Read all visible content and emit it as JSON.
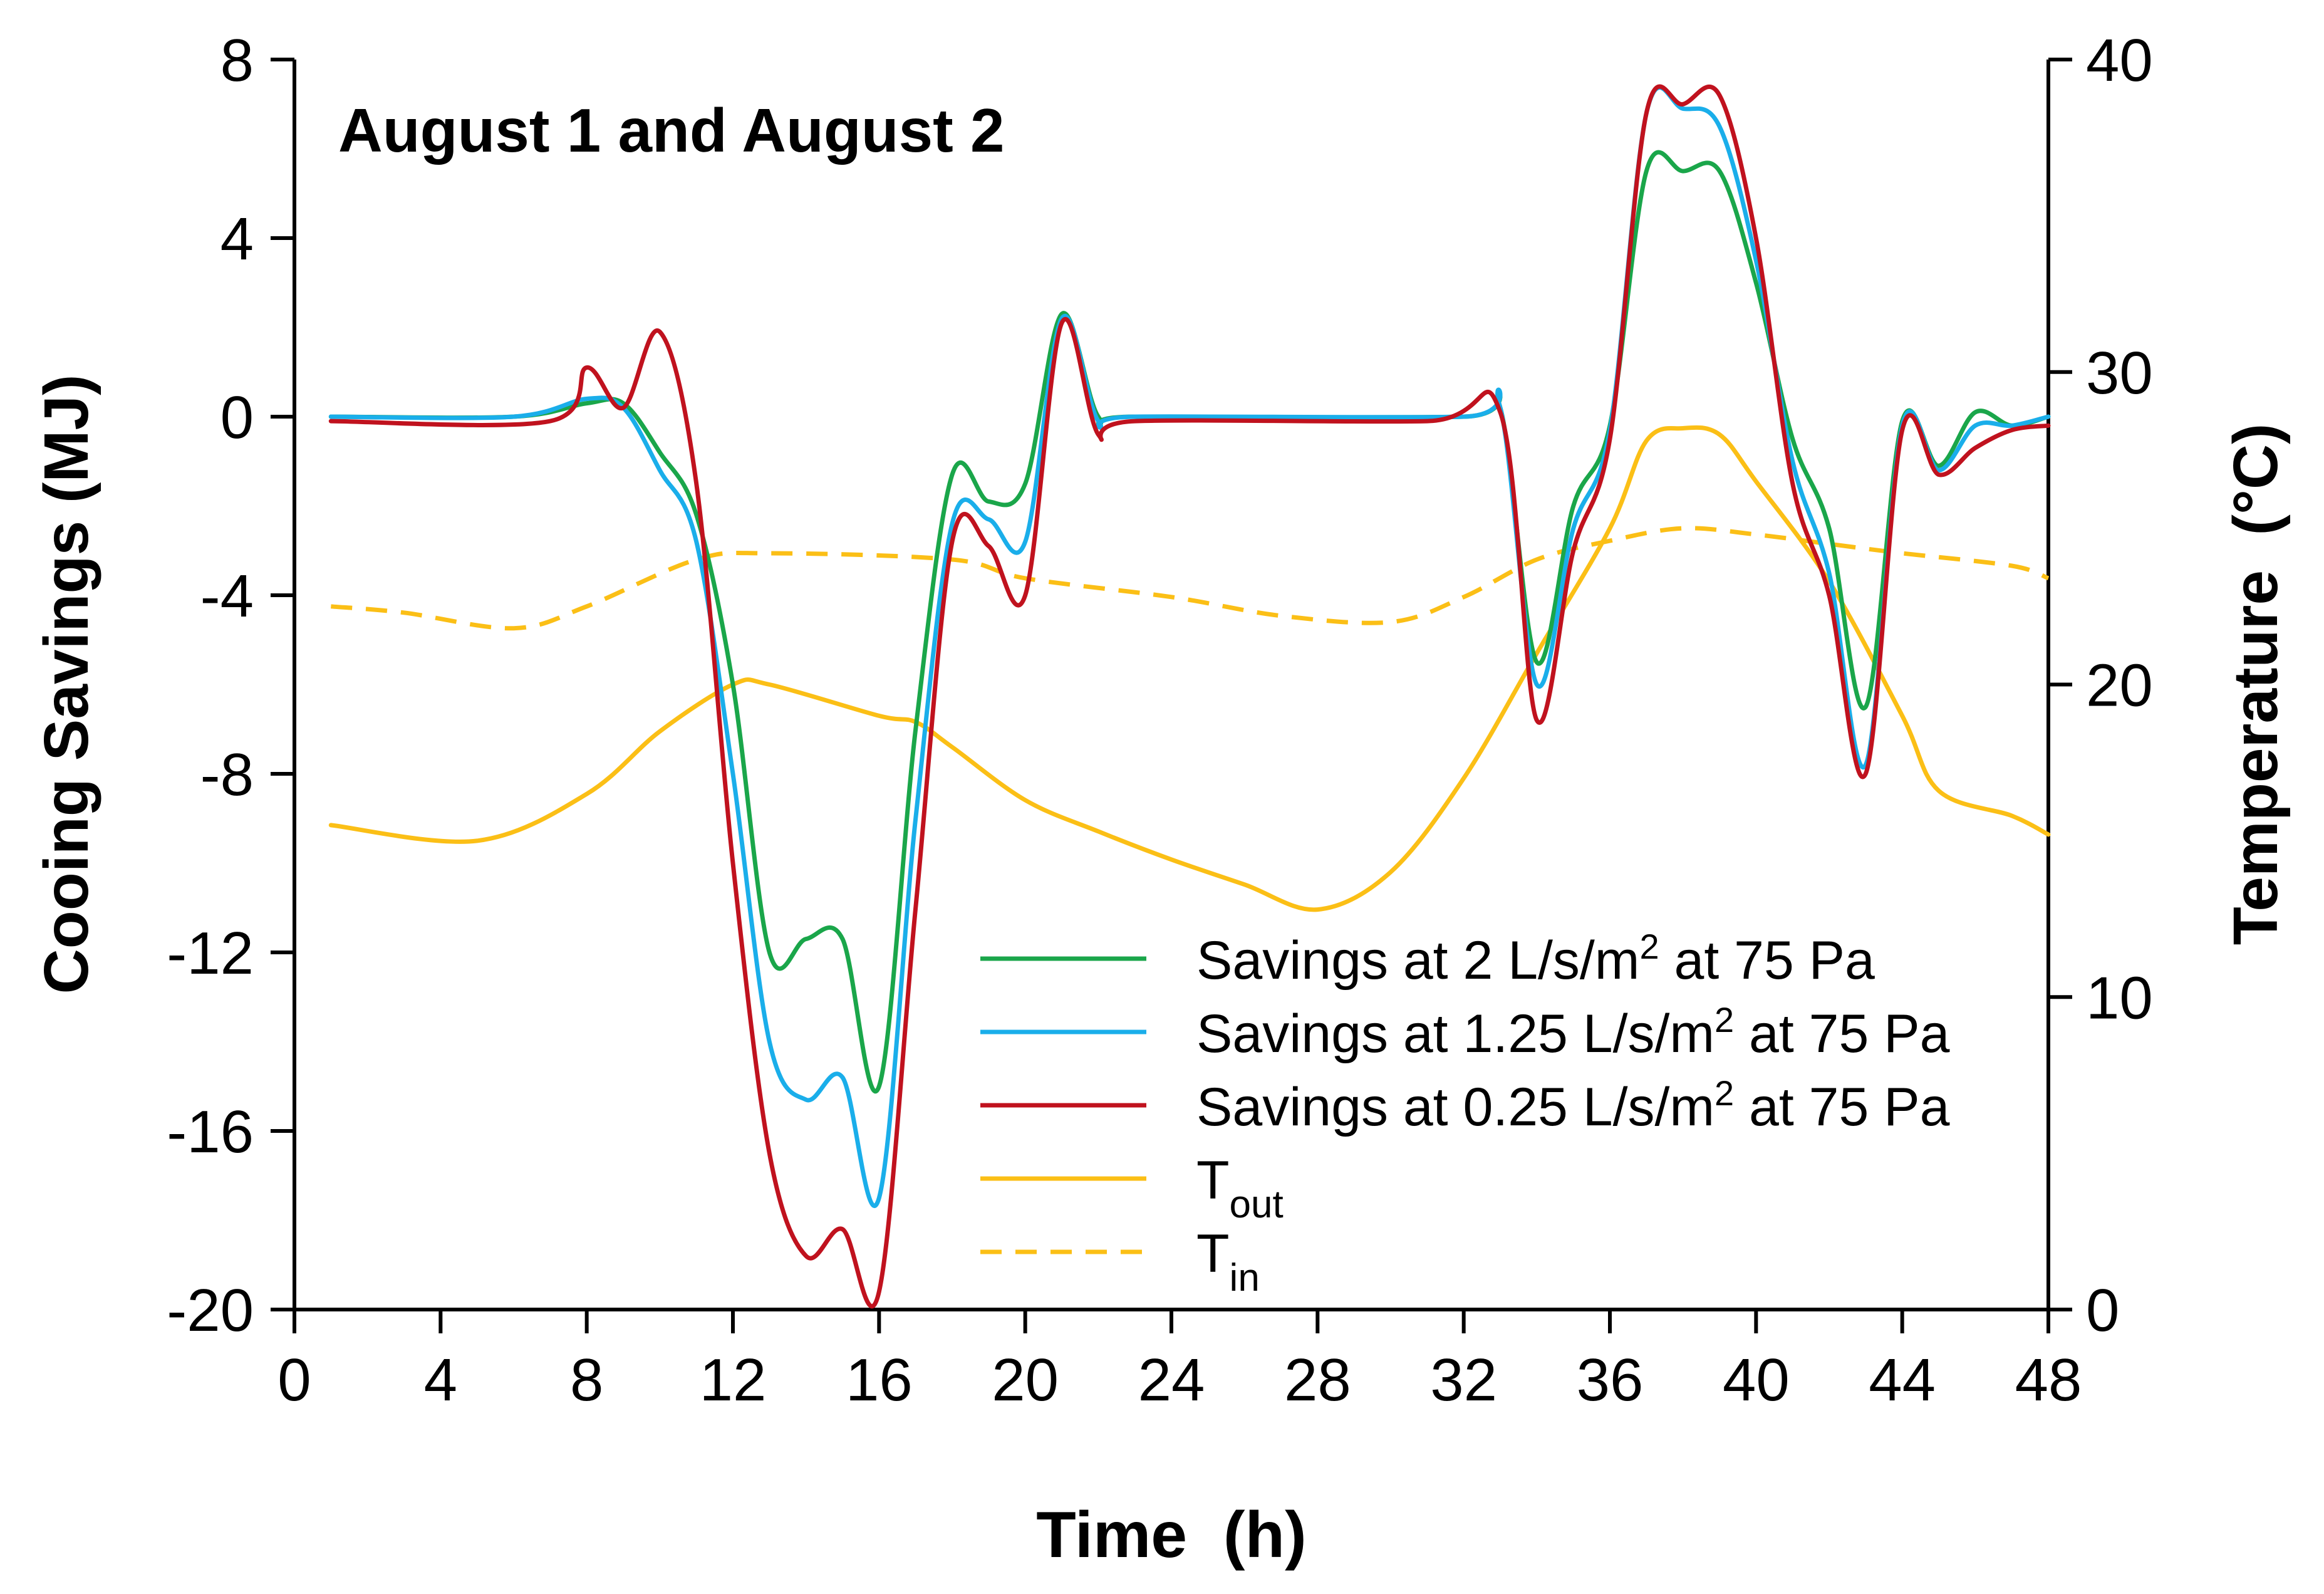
{
  "chart_data": {
    "type": "line",
    "title": "August 1 and August 2",
    "xlabel": "Time  (h)",
    "ylabel_left": "Cooing Savings (MJ)",
    "ylabel_right": "Temperature  (°C)",
    "xlim": [
      0,
      48
    ],
    "ylim_left": [
      -20,
      8
    ],
    "ylim_right": [
      0,
      40
    ],
    "x_ticks": [
      "0",
      "4",
      "8",
      "12",
      "16",
      "20",
      "24",
      "28",
      "32",
      "36",
      "40",
      "44",
      "48"
    ],
    "y_ticks_left": [
      "8",
      "4",
      "0",
      "-4",
      "-8",
      "-12",
      "-16",
      "-20"
    ],
    "y_ticks_right": [
      "40",
      "30",
      "20",
      "10",
      "0"
    ],
    "grid": false,
    "legend_position": "bottom-center",
    "series": [
      {
        "name": "Savings at 2 L/s/m² at 75 Pa",
        "legend_main": "Savings at 2 L/s/m",
        "legend_sup": "2",
        "legend_tail": " at 75 Pa",
        "axis": "left",
        "color": "#1aa64a",
        "dash": false,
        "points": [
          [
            1,
            0
          ],
          [
            6,
            0
          ],
          [
            8,
            0.3
          ],
          [
            9,
            0.3
          ],
          [
            10,
            -0.8
          ],
          [
            11,
            -2.2
          ],
          [
            12,
            -6
          ],
          [
            13,
            -12
          ],
          [
            14,
            -11.7
          ],
          [
            15,
            -11.7
          ],
          [
            16,
            -15
          ],
          [
            17,
            -7
          ],
          [
            18,
            -1.3
          ],
          [
            19,
            -1.9
          ],
          [
            20,
            -1.5
          ],
          [
            21,
            2.3
          ],
          [
            22,
            0
          ],
          [
            23,
            0
          ],
          [
            32,
            0
          ],
          [
            33,
            0.2
          ],
          [
            34,
            -5.5
          ],
          [
            35,
            -2
          ],
          [
            36,
            -0.2
          ],
          [
            37,
            5.5
          ],
          [
            38,
            5.5
          ],
          [
            39,
            5.5
          ],
          [
            40,
            3
          ],
          [
            41,
            -0.5
          ],
          [
            42,
            -2.5
          ],
          [
            43,
            -6.5
          ],
          [
            44,
            -0.1
          ],
          [
            45,
            -1.1
          ],
          [
            46,
            0.1
          ],
          [
            47,
            -0.2
          ],
          [
            48,
            0
          ]
        ]
      },
      {
        "name": "Savings at 1.25 L/s/m² at 75 Pa",
        "legend_main": "Savings at 1.25 L/s/m",
        "legend_sup": "2",
        "legend_tail": " at 75 Pa",
        "axis": "left",
        "color": "#1aaeea",
        "dash": false,
        "points": [
          [
            1,
            0
          ],
          [
            6,
            0
          ],
          [
            8,
            0.4
          ],
          [
            9,
            0.2
          ],
          [
            10,
            -1.2
          ],
          [
            11,
            -2.8
          ],
          [
            12,
            -8
          ],
          [
            13,
            -14
          ],
          [
            14,
            -15.3
          ],
          [
            15,
            -14.8
          ],
          [
            16,
            -17.5
          ],
          [
            17,
            -9
          ],
          [
            18,
            -2.4
          ],
          [
            19,
            -2.3
          ],
          [
            20,
            -2.8
          ],
          [
            21,
            2.2
          ],
          [
            22,
            -0.1
          ],
          [
            23,
            0
          ],
          [
            32,
            0
          ],
          [
            33,
            0.2
          ],
          [
            34,
            -6
          ],
          [
            35,
            -2.5
          ],
          [
            36,
            -0.3
          ],
          [
            37,
            6.8
          ],
          [
            38,
            6.9
          ],
          [
            39,
            6.5
          ],
          [
            40,
            3.5
          ],
          [
            41,
            -1
          ],
          [
            42,
            -3.5
          ],
          [
            43,
            -7.8
          ],
          [
            44,
            -0.2
          ],
          [
            45,
            -1.2
          ],
          [
            46,
            -0.2
          ],
          [
            47,
            -0.2
          ],
          [
            48,
            0
          ]
        ]
      },
      {
        "name": "Savings at 0.25 L/s/m² at 75 Pa",
        "legend_main": "Savings at 0.25 L/s/m",
        "legend_sup": "2",
        "legend_tail": " at 75 Pa",
        "axis": "left",
        "color": "#c0121e",
        "dash": false,
        "points": [
          [
            1,
            -0.1
          ],
          [
            7,
            -0.1
          ],
          [
            8,
            1.1
          ],
          [
            9,
            0.2
          ],
          [
            10,
            1.9
          ],
          [
            11,
            -1.5
          ],
          [
            12,
            -10
          ],
          [
            13,
            -16.5
          ],
          [
            14,
            -18.8
          ],
          [
            15,
            -18.2
          ],
          [
            16,
            -19.6
          ],
          [
            17,
            -11
          ],
          [
            18,
            -2.8
          ],
          [
            19,
            -2.9
          ],
          [
            20,
            -4
          ],
          [
            21,
            2.1
          ],
          [
            22,
            -0.4
          ],
          [
            23,
            -0.1
          ],
          [
            31,
            -0.1
          ],
          [
            33,
            0.1
          ],
          [
            34,
            -6.8
          ],
          [
            35,
            -3
          ],
          [
            36,
            -0.5
          ],
          [
            37,
            6.8
          ],
          [
            38,
            7
          ],
          [
            39,
            7.2
          ],
          [
            40,
            4
          ],
          [
            41,
            -1.5
          ],
          [
            42,
            -4
          ],
          [
            43,
            -8
          ],
          [
            44,
            -0.3
          ],
          [
            45,
            -1.3
          ],
          [
            46,
            -0.7
          ],
          [
            47,
            -0.3
          ],
          [
            48,
            -0.2
          ]
        ]
      },
      {
        "name": "Tout",
        "legend_main": "T",
        "legend_sub": "out",
        "axis": "right",
        "color": "#fbbf16",
        "dash": false,
        "points": [
          [
            1,
            15.5
          ],
          [
            5,
            15
          ],
          [
            8,
            16.5
          ],
          [
            10,
            18.5
          ],
          [
            12,
            20
          ],
          [
            13,
            20
          ],
          [
            16,
            19
          ],
          [
            17,
            18.8
          ],
          [
            18,
            18
          ],
          [
            20,
            16.3
          ],
          [
            22,
            15.3
          ],
          [
            24,
            14.4
          ],
          [
            26,
            13.6
          ],
          [
            28,
            12.8
          ],
          [
            30,
            14
          ],
          [
            32,
            17
          ],
          [
            34,
            21
          ],
          [
            36,
            25
          ],
          [
            37,
            27.8
          ],
          [
            38,
            28.2
          ],
          [
            39,
            28
          ],
          [
            40,
            26.5
          ],
          [
            42,
            23.3
          ],
          [
            44,
            19
          ],
          [
            45,
            16.6
          ],
          [
            47,
            15.8
          ],
          [
            48,
            15.2
          ]
        ]
      },
      {
        "name": "Tin",
        "legend_main": "T",
        "legend_sub": "in",
        "axis": "right",
        "color": "#fbbf16",
        "dash": true,
        "points": [
          [
            1,
            22.5
          ],
          [
            3,
            22.3
          ],
          [
            6,
            21.8
          ],
          [
            8,
            22.5
          ],
          [
            11,
            24
          ],
          [
            13,
            24.2
          ],
          [
            18,
            24
          ],
          [
            20,
            23.4
          ],
          [
            24,
            22.8
          ],
          [
            27,
            22.2
          ],
          [
            30,
            22
          ],
          [
            32,
            22.8
          ],
          [
            34,
            24
          ],
          [
            36,
            24.6
          ],
          [
            38,
            25
          ],
          [
            40,
            24.8
          ],
          [
            42,
            24.5
          ],
          [
            44,
            24.2
          ],
          [
            47,
            23.8
          ],
          [
            48,
            23.4
          ]
        ]
      }
    ]
  }
}
